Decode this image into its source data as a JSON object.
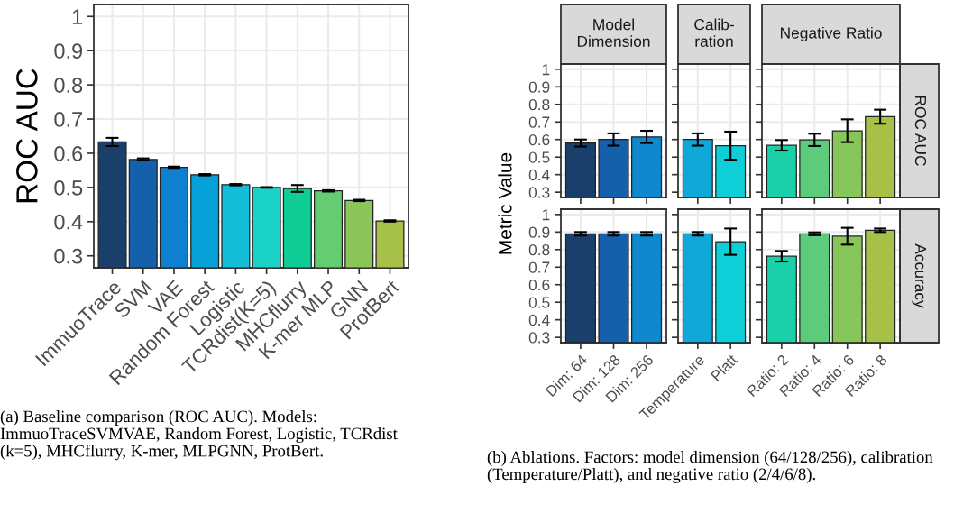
{
  "chart_data": [
    {
      "type": "bar",
      "ylabel": "ROC AUC",
      "categories": [
        "ImmuoTrace",
        "SVM",
        "VAE",
        "Random Forest",
        "Logistic",
        "TCRdist(K=5)",
        "MHCflurry",
        "K-mer MLP",
        "GNN",
        "ProtBert"
      ],
      "values": [
        0.633,
        0.582,
        0.559,
        0.537,
        0.508,
        0.5,
        0.497,
        0.49,
        0.462,
        0.402
      ],
      "errors": [
        0.012,
        0.003,
        0.002,
        0.002,
        0.002,
        0.001,
        0.01,
        0.002,
        0.002,
        0.002
      ],
      "colors": [
        "#1a3f6b",
        "#1560aa",
        "#0f80cf",
        "#05a0d8",
        "#12bed8",
        "#1ad2c6",
        "#10cc95",
        "#66cc72",
        "#8cc65a",
        "#a7c148"
      ],
      "ylim": [
        0.265,
        1.035
      ],
      "yticks": [
        0.3,
        0.4,
        0.5,
        0.6,
        0.7,
        0.8,
        0.9,
        1
      ],
      "grid": true,
      "annotations": [
        "(a) Baseline comparison (ROC AUC). Models: ImmuoTraceSVMVAE, Random Forest, Logistic, TCRdist (k=5), MHCflurry, K-mer, MLPGNN, ProtBert."
      ]
    },
    {
      "type": "bar",
      "title": "Model Dimension",
      "ylabel": "Metric Value",
      "categories": [
        null,
        null,
        null
      ],
      "values": [
        0.58,
        0.6,
        0.615
      ],
      "errors": [
        0.02,
        0.035,
        0.035
      ],
      "colors": [
        "#1a3f6b",
        "#1560aa",
        "#0f88d0"
      ],
      "ylim": [
        0.27,
        1.03
      ],
      "yticks": [
        0.3,
        0.4,
        0.5,
        0.6,
        0.7,
        0.8,
        0.9,
        1
      ],
      "grid": true,
      "tick_labels": "y",
      "annotations": [
        "(b) Ablations. Factors: model dimension (64/128/256), calibration (Temperature/Platt), and negative ratio (2/4/6/8)."
      ]
    },
    {
      "type": "bar",
      "title": "Calib-ration",
      "categories": [
        null,
        null
      ],
      "values": [
        0.6,
        0.565
      ],
      "errors": [
        0.035,
        0.08
      ],
      "colors": [
        "#10a8d8",
        "#0ecfd8"
      ],
      "ylim": [
        0.27,
        1.03
      ],
      "yticks": [
        0.3,
        0.4,
        0.5,
        0.6,
        0.7,
        0.8,
        0.9,
        1
      ],
      "grid": true,
      "tick_labels": false
    },
    {
      "type": "bar",
      "title": "Negative Ratio",
      "categories": [
        null,
        null,
        null,
        null
      ],
      "values": [
        0.567,
        0.598,
        0.65,
        0.73
      ],
      "errors": [
        0.03,
        0.035,
        0.065,
        0.04
      ],
      "colors": [
        "#1ad0a8",
        "#5ccc7c",
        "#88c65a",
        "#a7c148"
      ],
      "ylim": [
        0.27,
        1.03
      ],
      "yticks": [
        0.3,
        0.4,
        0.5,
        0.6,
        0.7,
        0.8,
        0.9,
        1
      ],
      "grid": true,
      "tick_labels": false,
      "annotations": [
        "ROC AUC"
      ]
    },
    {
      "type": "bar",
      "categories": [
        "Dim: 64",
        "Dim: 128",
        "Dim: 256"
      ],
      "values": [
        0.89,
        0.89,
        0.89
      ],
      "errors": [
        0.01,
        0.01,
        0.01
      ],
      "colors": [
        "#1a3f6b",
        "#1560aa",
        "#0f88d0"
      ],
      "ylim": [
        0.27,
        1.03
      ],
      "yticks": [
        0.3,
        0.4,
        0.5,
        0.6,
        0.7,
        0.8,
        0.9,
        1
      ],
      "grid": true
    },
    {
      "type": "bar",
      "categories": [
        "Temperature",
        "Platt"
      ],
      "values": [
        0.89,
        0.845
      ],
      "errors": [
        0.01,
        0.075
      ],
      "colors": [
        "#10a8d8",
        "#0ecfd8"
      ],
      "ylim": [
        0.27,
        1.03
      ],
      "yticks": [
        0.3,
        0.4,
        0.5,
        0.6,
        0.7,
        0.8,
        0.9,
        1
      ],
      "grid": true,
      "tick_labels": "x"
    },
    {
      "type": "bar",
      "categories": [
        "Ratio: 2",
        "Ratio: 4",
        "Ratio: 6",
        "Ratio: 8"
      ],
      "values": [
        0.762,
        0.89,
        0.876,
        0.91
      ],
      "errors": [
        0.03,
        0.008,
        0.048,
        0.01
      ],
      "colors": [
        "#1ad0a8",
        "#5ccc7c",
        "#88c65a",
        "#a7c148"
      ],
      "ylim": [
        0.27,
        1.03
      ],
      "yticks": [
        0.3,
        0.4,
        0.5,
        0.6,
        0.7,
        0.8,
        0.9,
        1
      ],
      "grid": true,
      "tick_labels": "x",
      "annotations": [
        "Accuracy"
      ]
    }
  ]
}
